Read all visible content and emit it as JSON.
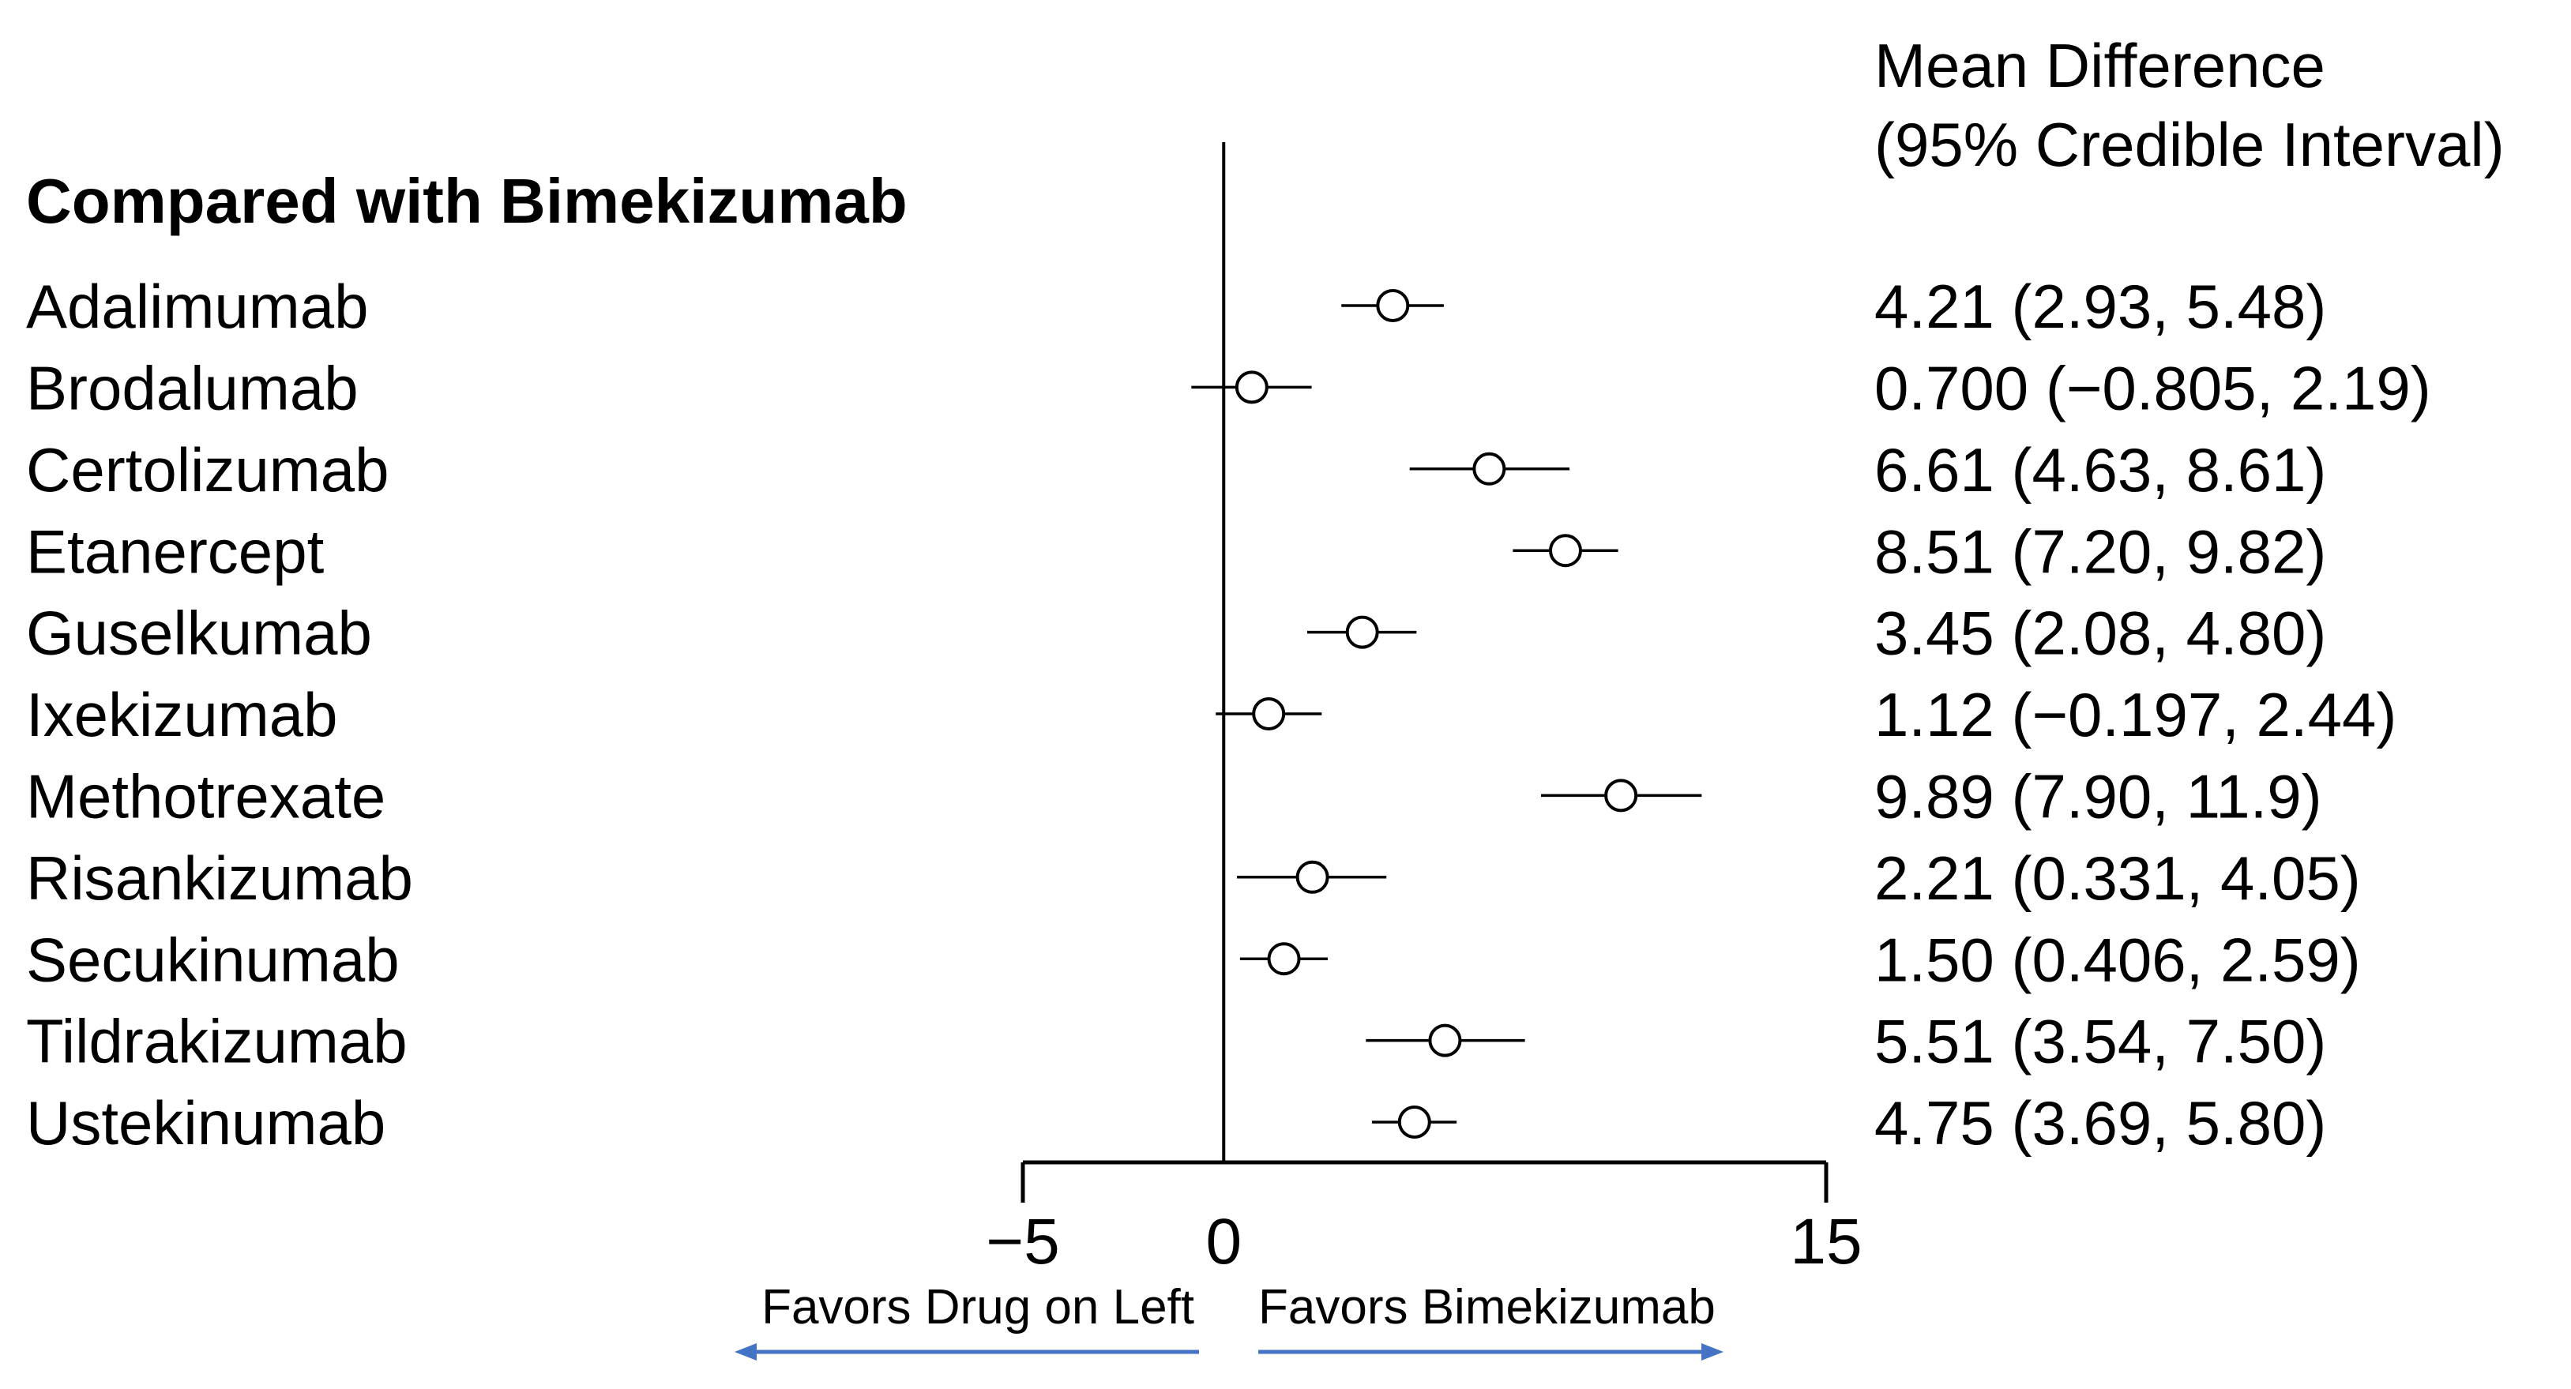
{
  "chart_data": {
    "type": "forest",
    "section_heading": "Compared with Bimekizumab",
    "column_header_line1": "Mean Difference",
    "column_header_line2": "(95% Credible Interval)",
    "xlim": [
      -5,
      15
    ],
    "reference_line": 0,
    "ticks": [
      {
        "value": -5,
        "label": "−5"
      },
      {
        "value": 0,
        "label": "0"
      },
      {
        "value": 15,
        "label": "15"
      }
    ],
    "direction_labels": {
      "left": "Favors Drug on Left",
      "right": "Favors Bimekizumab"
    },
    "arrow_color": "#4472c4",
    "rows": [
      {
        "label": "Adalimumab",
        "estimate": 4.21,
        "lower": 2.93,
        "upper": 5.48,
        "ci_text": "4.21 (2.93, 5.48)"
      },
      {
        "label": "Brodalumab",
        "estimate": 0.7,
        "lower": -0.805,
        "upper": 2.19,
        "ci_text": "0.700 (−0.805, 2.19)"
      },
      {
        "label": "Certolizumab",
        "estimate": 6.61,
        "lower": 4.63,
        "upper": 8.61,
        "ci_text": "6.61 (4.63, 8.61)"
      },
      {
        "label": "Etanercept",
        "estimate": 8.51,
        "lower": 7.2,
        "upper": 9.82,
        "ci_text": "8.51 (7.20, 9.82)"
      },
      {
        "label": "Guselkumab",
        "estimate": 3.45,
        "lower": 2.08,
        "upper": 4.8,
        "ci_text": "3.45 (2.08, 4.80)"
      },
      {
        "label": "Ixekizumab",
        "estimate": 1.12,
        "lower": -0.197,
        "upper": 2.44,
        "ci_text": "1.12 (−0.197, 2.44)"
      },
      {
        "label": "Methotrexate",
        "estimate": 9.89,
        "lower": 7.9,
        "upper": 11.9,
        "ci_text": "9.89 (7.90, 11.9)"
      },
      {
        "label": "Risankizumab",
        "estimate": 2.21,
        "lower": 0.331,
        "upper": 4.05,
        "ci_text": "2.21 (0.331, 4.05)"
      },
      {
        "label": "Secukinumab",
        "estimate": 1.5,
        "lower": 0.406,
        "upper": 2.59,
        "ci_text": "1.50 (0.406, 2.59)"
      },
      {
        "label": "Tildrakizumab",
        "estimate": 5.51,
        "lower": 3.54,
        "upper": 7.5,
        "ci_text": "5.51 (3.54, 7.50)"
      },
      {
        "label": "Ustekinumab",
        "estimate": 4.75,
        "lower": 3.69,
        "upper": 5.8,
        "ci_text": "4.75 (3.69, 5.80)"
      }
    ]
  }
}
